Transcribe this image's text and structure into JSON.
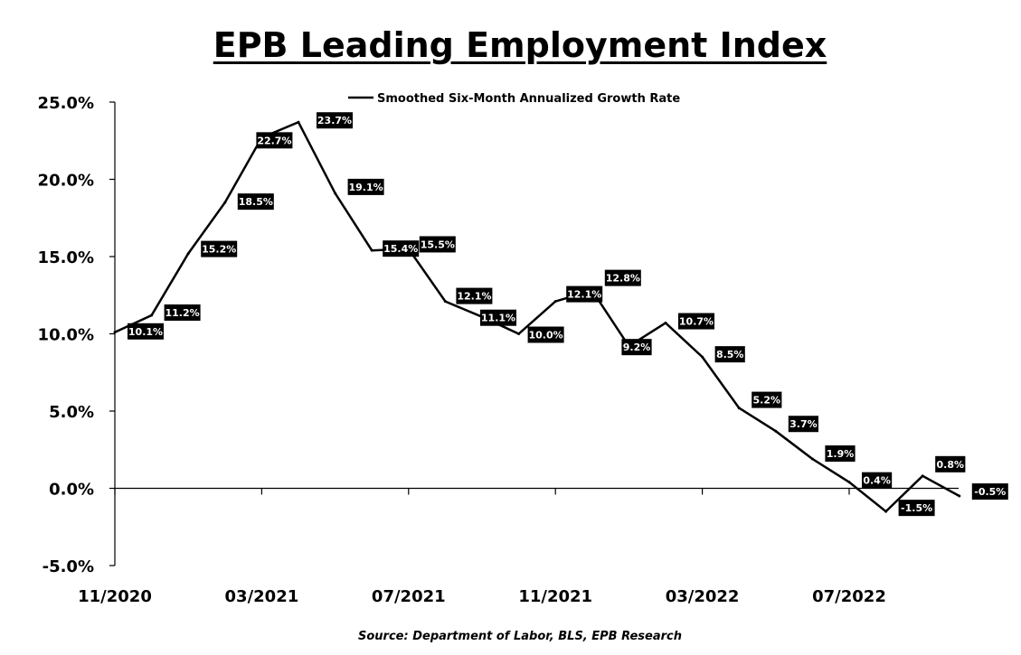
{
  "chart_data": {
    "type": "line",
    "title": "EPB Leading Employment Index",
    "source": "Source: Department of Labor, BLS, EPB Research",
    "series": [
      {
        "name": "Smoothed Six-Month Annualized Growth Rate",
        "color": "#000000",
        "x": [
          "2020-11",
          "2020-12",
          "2021-01",
          "2021-02",
          "2021-03",
          "2021-04",
          "2021-05",
          "2021-06",
          "2021-07",
          "2021-08",
          "2021-09",
          "2021-10",
          "2021-11",
          "2021-12",
          "2022-01",
          "2022-02",
          "2022-03",
          "2022-04",
          "2022-05",
          "2022-06",
          "2022-07",
          "2022-08",
          "2022-09",
          "2022-10"
        ],
        "values": [
          10.1,
          11.2,
          15.2,
          18.5,
          22.7,
          23.7,
          19.1,
          15.4,
          15.5,
          12.1,
          11.1,
          10.0,
          12.1,
          12.8,
          9.2,
          10.7,
          8.5,
          5.2,
          3.7,
          1.9,
          0.4,
          -1.5,
          0.8,
          -0.5
        ],
        "labels": [
          "10.1%",
          "11.2%",
          "15.2%",
          "18.5%",
          "22.7%",
          "23.7%",
          "19.1%",
          "15.4%",
          "15.5%",
          "12.1%",
          "11.1%",
          "10.0%",
          "12.1%",
          "12.8%",
          "9.2%",
          "10.7%",
          "8.5%",
          "5.2%",
          "3.7%",
          "1.9%",
          "0.4%",
          "-1.5%",
          "0.8%",
          "-0.5%"
        ]
      }
    ],
    "y_ticks": [
      25,
      20,
      15,
      10,
      5,
      0,
      -5
    ],
    "y_tick_labels": [
      "25.0%",
      "20.0%",
      "15.0%",
      "10.0%",
      "5.0%",
      "0.0%",
      "-5.0%"
    ],
    "ylim": [
      -5,
      25
    ],
    "x_ticks": [
      "2020-11",
      "2021-03",
      "2021-07",
      "2021-11",
      "2022-03",
      "2022-07"
    ],
    "x_tick_labels": [
      "11/2020",
      "03/2021",
      "07/2021",
      "11/2021",
      "03/2022",
      "07/2022"
    ],
    "legend_position": "top-center",
    "grid": false
  }
}
